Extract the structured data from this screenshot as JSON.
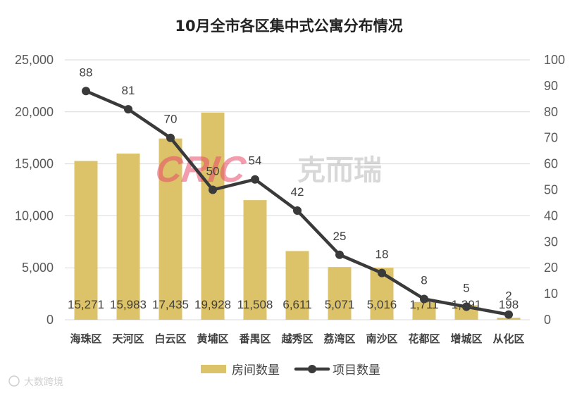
{
  "chart_data": {
    "type": "bar+line",
    "title": "10月全市各区集中式公寓分布情况",
    "categories": [
      "海珠区",
      "天河区",
      "白云区",
      "黄埔区",
      "番禺区",
      "越秀区",
      "荔湾区",
      "南沙区",
      "花都区",
      "增城区",
      "从化区"
    ],
    "series": [
      {
        "name": "房间数量",
        "type": "bar",
        "axis": "left",
        "color": "#dcc268",
        "values": [
          15271,
          15983,
          17435,
          19928,
          11508,
          6611,
          5071,
          5016,
          1711,
          1391,
          198
        ],
        "labels": [
          "15,271",
          "15,983",
          "17,435",
          "19,928",
          "11,508",
          "6,611",
          "5,071",
          "5,016",
          "1,711",
          "1,391",
          "198"
        ]
      },
      {
        "name": "项目数量",
        "type": "line",
        "axis": "right",
        "color": "#3a3a3a",
        "values": [
          88,
          81,
          70,
          50,
          54,
          42,
          25,
          18,
          8,
          5,
          2
        ],
        "labels": [
          "88",
          "81",
          "70",
          "50",
          "54",
          "42",
          "25",
          "18",
          "8",
          "5",
          "2"
        ]
      }
    ],
    "y_left": {
      "min": 0,
      "max": 25000,
      "ticks": [
        0,
        5000,
        10000,
        15000,
        20000,
        25000
      ],
      "tick_labels": [
        "0",
        "5,000",
        "10,000",
        "15,000",
        "20,000",
        "25,000"
      ]
    },
    "y_right": {
      "min": 0,
      "max": 100,
      "ticks": [
        0,
        10,
        20,
        30,
        40,
        50,
        60,
        70,
        80,
        90,
        100
      ],
      "tick_labels": [
        "0",
        "10",
        "20",
        "30",
        "40",
        "50",
        "60",
        "70",
        "80",
        "90",
        "100"
      ]
    },
    "grid": true,
    "legend": "bottom-center"
  },
  "watermark": {
    "logo": "CRIC",
    "text": "克而瑞",
    "corner": "大数跨境"
  },
  "colors": {
    "grid": "#d9d9d9",
    "bar": "#dcc268",
    "line": "#3a3a3a"
  }
}
